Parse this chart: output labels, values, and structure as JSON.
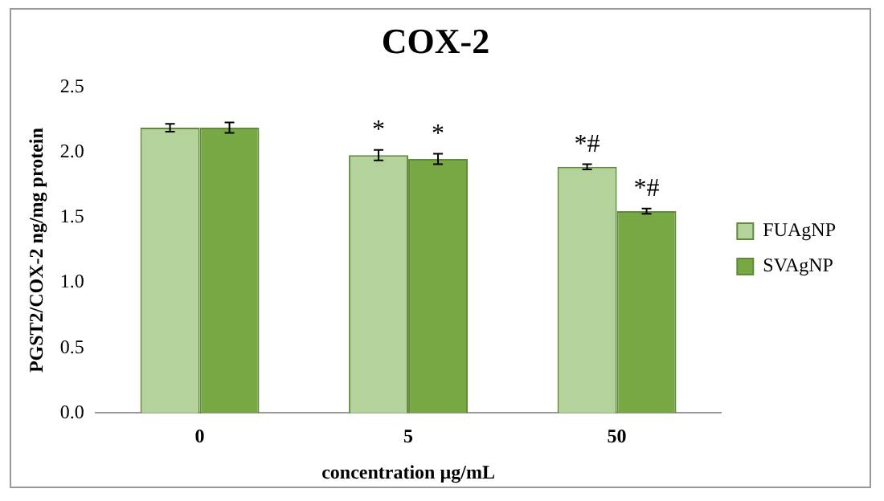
{
  "chart_data": {
    "type": "bar",
    "title": "COX-2",
    "xlabel": "concentration µg/mL",
    "ylabel": "PGST2/COX-2 ng/mg protein",
    "categories": [
      "0",
      "5",
      "50"
    ],
    "series": [
      {
        "name": "FUAgNP",
        "color": "#b3d39a",
        "values": [
          2.19,
          1.98,
          1.89
        ],
        "errors": [
          0.03,
          0.04,
          0.02
        ]
      },
      {
        "name": "SVAgNP",
        "color": "#77a843",
        "values": [
          2.19,
          1.95,
          1.55
        ],
        "errors": [
          0.04,
          0.04,
          0.02
        ]
      }
    ],
    "ylim": [
      0,
      2.5
    ],
    "yticks": [
      {
        "value": 0,
        "label": "0.0"
      },
      0.5,
      {
        "value": 1,
        "label": "1.0"
      },
      1.5,
      {
        "value": 2,
        "label": "2.0"
      },
      2.5
    ],
    "grid": false,
    "legend": "right",
    "annotations": [
      {
        "text": "*",
        "x": "5",
        "y": 1.98
      },
      {
        "text": "*",
        "x": "5",
        "y": 1.95
      },
      {
        "text": "*#",
        "x": "50",
        "y": 1.89
      },
      {
        "text": "*#",
        "x": "50",
        "y": 1.55
      }
    ]
  }
}
